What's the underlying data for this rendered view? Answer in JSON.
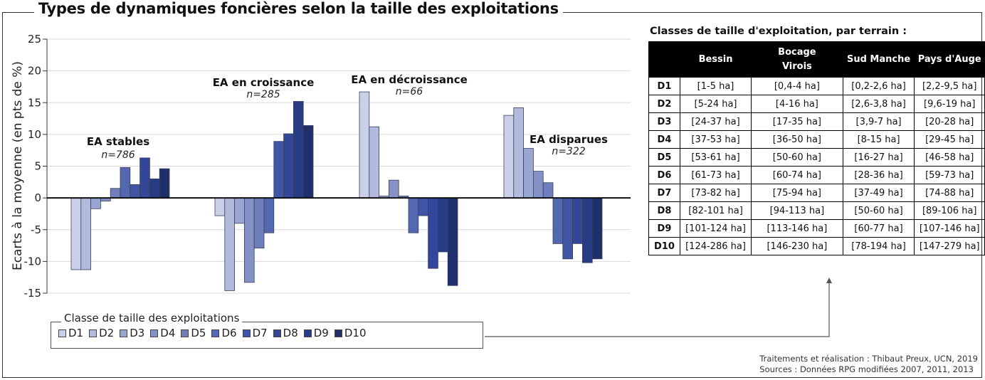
{
  "title": "Types de dynamiques foncières selon la taille des exploitations",
  "chart_data": {
    "type": "bar",
    "ylabel": "Ecarts à la moyenne (en pts de %)",
    "ylim": [
      -15,
      25
    ],
    "yticks": [
      25,
      20,
      15,
      10,
      5,
      0,
      -5,
      -10,
      -15
    ],
    "grid": true,
    "classes": [
      "D1",
      "D2",
      "D3",
      "D4",
      "D5",
      "D6",
      "D7",
      "D8",
      "D9",
      "D10"
    ],
    "class_colors": [
      "#c9d0e8",
      "#b2bbde",
      "#9aa6d2",
      "#8592c6",
      "#6f7fbc",
      "#5368b1",
      "#3f55a5",
      "#324797",
      "#283c85",
      "#1f2f6b"
    ],
    "groups": [
      {
        "name": "EA stables",
        "n": "n=786",
        "values": [
          -11.3,
          -11.3,
          -1.7,
          -0.5,
          1.5,
          4.8,
          2.1,
          6.3,
          3.0,
          4.6
        ]
      },
      {
        "name": "EA en croissance",
        "n": "n=285",
        "values": [
          -2.8,
          -14.6,
          -4.0,
          -13.3,
          -7.9,
          -5.5,
          8.9,
          10.1,
          15.2,
          11.4
        ]
      },
      {
        "name": "EA en décroissance",
        "n": "n=66",
        "values": [
          16.7,
          11.2,
          0.3,
          2.8,
          0.3,
          -5.5,
          -2.8,
          -11.1,
          -8.5,
          -13.8
        ]
      },
      {
        "name": "EA disparues",
        "n": "n=322",
        "values": [
          13.0,
          14.2,
          7.8,
          4.2,
          2.4,
          -7.2,
          -9.6,
          -7.2,
          -10.2,
          -9.6
        ]
      }
    ]
  },
  "legend": {
    "title": "Classe de taille des exploitations",
    "items": [
      "D1",
      "D2",
      "D3",
      "D4",
      "D5",
      "D6",
      "D7",
      "D8",
      "D9",
      "D10"
    ]
  },
  "table": {
    "title": "Classes de taille d'exploitation, par terrain :",
    "headers": [
      "",
      "Bessin",
      "Bocage Virois",
      "Sud Manche",
      "Pays d'Auge"
    ],
    "rows": [
      [
        "D1",
        "[1-5 ha]",
        "[0,4-4 ha]",
        "[0,2-2,6 ha]",
        "[2,2-9,5 ha]"
      ],
      [
        "D2",
        "[5-24 ha]",
        "[4-16 ha]",
        "[2,6-3,8 ha]",
        "[9,6-19 ha]"
      ],
      [
        "D3",
        "[24-37 ha]",
        "[17-35 ha]",
        "[3,9-7 ha]",
        "[20-28 ha]"
      ],
      [
        "D4",
        "[37-53 ha]",
        "[36-50 ha]",
        "[8-15 ha]",
        "[29-45 ha]"
      ],
      [
        "D5",
        "[53-61 ha]",
        "[50-60 ha]",
        "[16-27 ha]",
        "[46-58 ha]"
      ],
      [
        "D6",
        "[61-73 ha]",
        "[60-74 ha]",
        "[28-36 ha]",
        "[59-73 ha]"
      ],
      [
        "D7",
        "[73-82 ha]",
        "[75-94 ha]",
        "[37-49 ha]",
        "[74-88 ha]"
      ],
      [
        "D8",
        "[82-101 ha]",
        "[94-113 ha]",
        "[50-60 ha]",
        "[89-106 ha]"
      ],
      [
        "D9",
        "[101-124 ha]",
        "[113-146 ha]",
        "[60-77 ha]",
        "[107-146 ha]"
      ],
      [
        "D10",
        "[124-286 ha]",
        "[146-230 ha]",
        "[78-194 ha]",
        "[147-279 ha]"
      ]
    ]
  },
  "footer": {
    "line1": "Traitements et réalisation : Thibaut Preux, UCN, 2019",
    "line2": "Sources : Données RPG modifiées 2007, 2011, 2013"
  }
}
